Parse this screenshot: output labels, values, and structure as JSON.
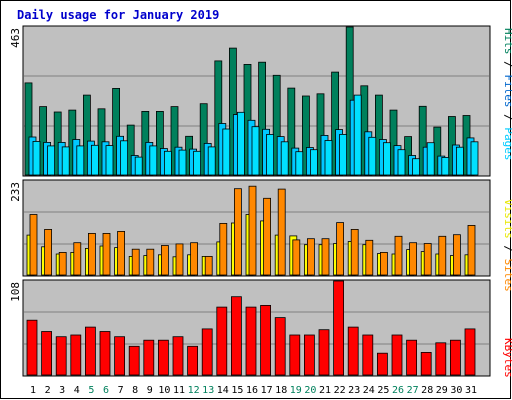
{
  "title": "Daily usage for January 2019",
  "colors": {
    "background": "#ffffff",
    "plot_bg": "#c0c0c0",
    "title": "#0000cc",
    "hits": "#00805c",
    "files": "#00c8ff",
    "pages": "#00e0ff",
    "visits": "#ffff00",
    "sites": "#ff8800",
    "kbytes": "#ff0000",
    "weekend_label": "#00805c"
  },
  "chart_data": [
    {
      "type": "bar",
      "panel": "hits_files_pages",
      "ymax_label": "463",
      "ymax": 463,
      "legend": [
        "Pages",
        "/",
        "Files",
        "/",
        "Hits"
      ],
      "categories": [
        "1",
        "2",
        "3",
        "4",
        "5",
        "6",
        "7",
        "8",
        "9",
        "10",
        "11",
        "12",
        "13",
        "14",
        "15",
        "16",
        "17",
        "18",
        "19",
        "20",
        "21",
        "22",
        "23",
        "24",
        "25",
        "26",
        "27",
        "28",
        "29",
        "30",
        "31"
      ],
      "series": [
        {
          "name": "Hits",
          "values": [
            288,
            214,
            197,
            203,
            250,
            207,
            271,
            156,
            199,
            199,
            214,
            121,
            223,
            357,
            397,
            346,
            353,
            312,
            272,
            247,
            254,
            322,
            463,
            279,
            250,
            203,
            120,
            215,
            150,
            183,
            186
          ]
        },
        {
          "name": "Files",
          "values": [
            119,
            102,
            102,
            111,
            106,
            104,
            121,
            61,
            102,
            83,
            87,
            81,
            99,
            161,
            189,
            171,
            143,
            120,
            84,
            86,
            124,
            142,
            234,
            135,
            111,
            92,
            61,
            87,
            59,
            94,
            116
          ]
        },
        {
          "name": "Pages",
          "values": [
            105,
            91,
            88,
            91,
            93,
            92,
            107,
            56,
            91,
            74,
            78,
            74,
            88,
            144,
            196,
            151,
            127,
            104,
            73,
            79,
            108,
            127,
            250,
            118,
            101,
            79,
            51,
            101,
            55,
            87,
            104
          ]
        }
      ]
    },
    {
      "type": "bar",
      "panel": "visits_sites",
      "ymax_label": "233",
      "ymax": 233,
      "legend": [
        "Sites",
        "/",
        "Visits"
      ],
      "series": [
        {
          "name": "Visits",
          "values": [
            99,
            70,
            52,
            56,
            66,
            72,
            68,
            46,
            48,
            50,
            45,
            50,
            46,
            82,
            129,
            150,
            134,
            99,
            97,
            75,
            75,
            78,
            83,
            75,
            53,
            52,
            63,
            58,
            52,
            48,
            50
          ]
        },
        {
          "name": "Sites",
          "values": [
            150,
            113,
            56,
            80,
            103,
            103,
            108,
            64,
            64,
            73,
            77,
            80,
            46,
            128,
            214,
            220,
            190,
            213,
            87,
            90,
            90,
            130,
            113,
            86,
            56,
            96,
            80,
            78,
            96,
            100,
            123
          ]
        }
      ]
    },
    {
      "type": "bar",
      "panel": "kbytes",
      "ymax_label": "108",
      "ymax": 108,
      "legend": [
        "KBytes"
      ],
      "series": [
        {
          "name": "KBytes",
          "values": [
            63,
            50,
            44,
            46,
            55,
            50,
            44,
            33,
            40,
            40,
            44,
            33,
            53,
            78,
            90,
            78,
            80,
            66,
            46,
            46,
            52,
            108,
            55,
            46,
            25,
            46,
            40,
            26,
            37,
            40,
            53
          ]
        }
      ]
    }
  ]
}
